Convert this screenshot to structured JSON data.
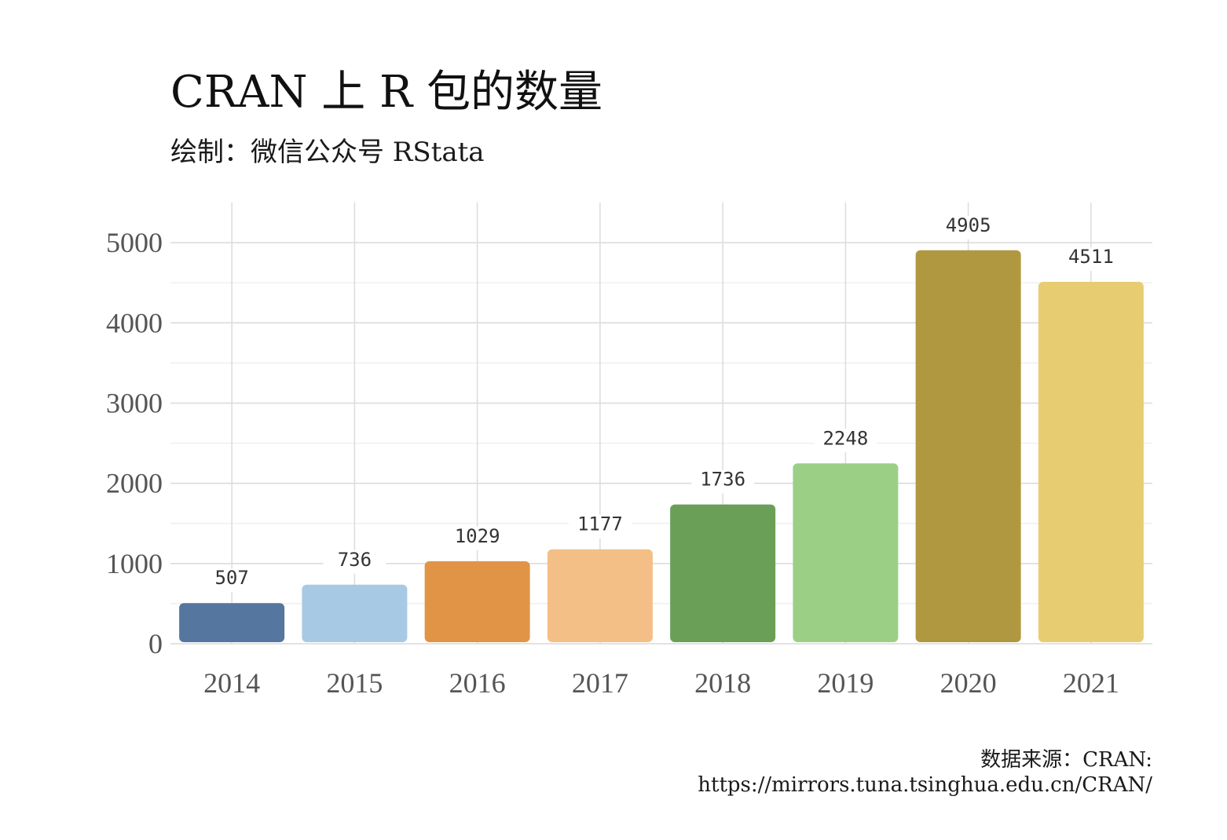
{
  "title": "CRAN 上 R 包的数量",
  "subtitle": "绘制：微信公众号 RStata",
  "caption": {
    "line1": "数据来源：CRAN:",
    "line2": "https://mirrors.tuna.tsinghua.edu.cn/CRAN/"
  },
  "chart_data": {
    "type": "bar",
    "title": "CRAN 上 R 包的数量",
    "subtitle": "绘制：微信公众号 RStata",
    "xlabel": "",
    "ylabel": "",
    "categories": [
      "2014",
      "2015",
      "2016",
      "2017",
      "2018",
      "2019",
      "2020",
      "2021"
    ],
    "values": [
      507,
      736,
      1029,
      1177,
      1736,
      2248,
      4905,
      4511
    ],
    "colors": [
      "#55769f",
      "#a8c9e3",
      "#e29446",
      "#f3bf86",
      "#6a9f58",
      "#9ccf86",
      "#b09841",
      "#e8cc72"
    ],
    "ylim": [
      0,
      5500
    ],
    "yticks": [
      0,
      1000,
      2000,
      3000,
      4000,
      5000
    ],
    "grid": true,
    "data_labels": true
  }
}
